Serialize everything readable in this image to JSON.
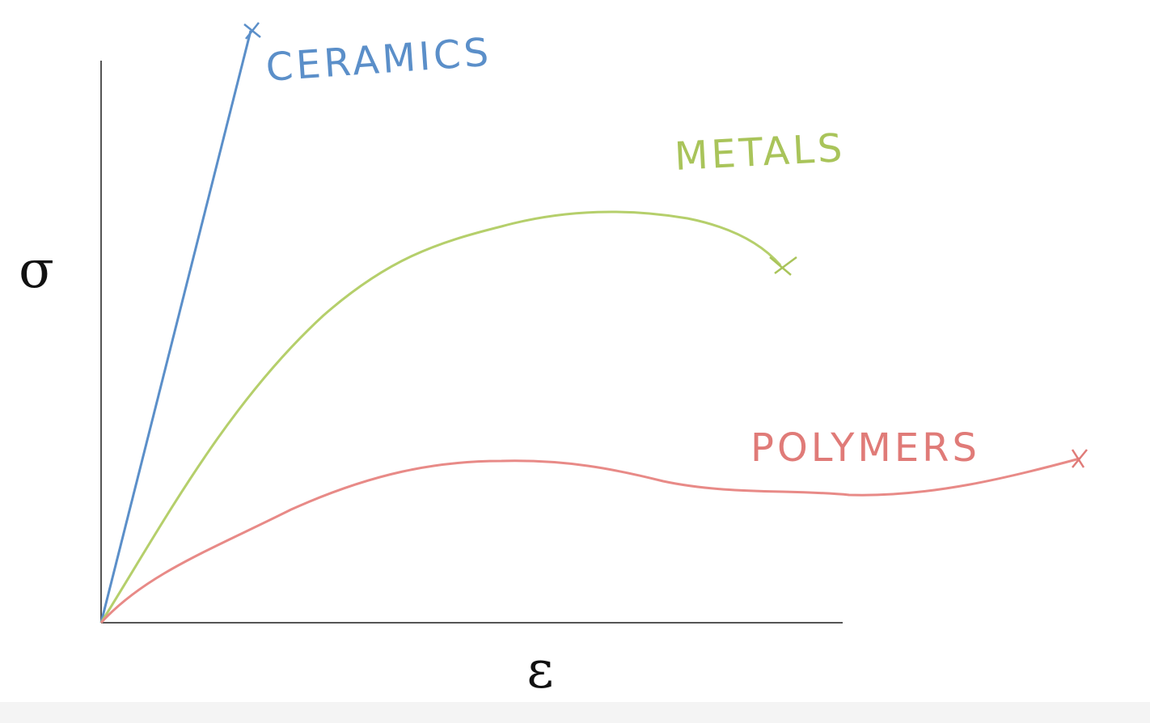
{
  "axes": {
    "y_label": "σ",
    "x_label": "ε"
  },
  "curves": [
    {
      "label": "CERAMICS"
    },
    {
      "label": "METALS"
    },
    {
      "label": "POLYMERS"
    }
  ]
}
